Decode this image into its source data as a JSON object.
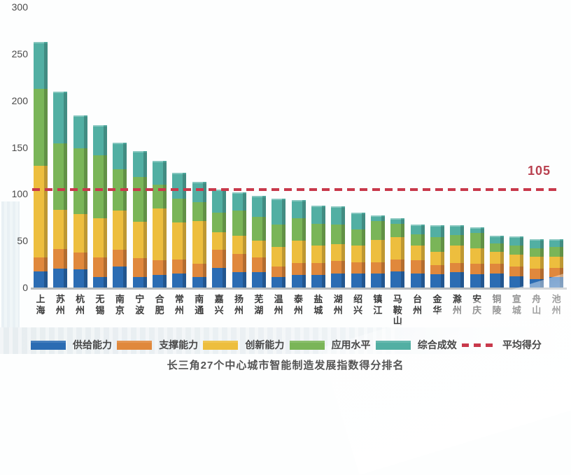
{
  "chart_data": {
    "type": "bar",
    "stacked": true,
    "title": "长三角27个中心城市智能制造发展指数得分排名",
    "categories": [
      "上海",
      "苏州",
      "杭州",
      "无锡",
      "南京",
      "宁波",
      "合肥",
      "常州",
      "南通",
      "嘉兴",
      "扬州",
      "芜湖",
      "温州",
      "泰州",
      "盐城",
      "湖州",
      "绍兴",
      "镇江",
      "马鞍山",
      "台州",
      "金华",
      "滁州",
      "安庆",
      "铜陵",
      "宣城",
      "舟山",
      "池州"
    ],
    "series": [
      {
        "key": "supply-capacity",
        "name": "供给能力",
        "color": "#2b6cb3",
        "values": [
          18,
          21,
          20,
          12,
          23,
          12,
          14,
          16,
          12,
          22,
          17,
          17,
          12,
          14,
          14,
          16,
          16,
          16,
          18,
          16,
          15,
          17,
          15,
          16,
          13,
          10,
          12
        ]
      },
      {
        "key": "support-capacity",
        "name": "支撑能力",
        "color": "#e0883c",
        "values": [
          15,
          21,
          18,
          21,
          18,
          20,
          16,
          15,
          14,
          19,
          20,
          16,
          11,
          13,
          13,
          13,
          12,
          12,
          13,
          14,
          10,
          10,
          11,
          10,
          10,
          11,
          10
        ]
      },
      {
        "key": "innovation-capacity",
        "name": "创新能力",
        "color": "#edbe3e",
        "values": [
          98,
          42,
          41,
          42,
          42,
          39,
          55,
          39,
          46,
          19,
          19,
          18,
          21,
          24,
          19,
          18,
          18,
          24,
          24,
          16,
          14,
          19,
          17,
          13,
          13,
          13,
          12
        ]
      },
      {
        "key": "application-level",
        "name": "应用水平",
        "color": "#7ab558",
        "values": [
          82,
          71,
          71,
          67,
          44,
          48,
          26,
          26,
          20,
          21,
          27,
          25,
          24,
          24,
          23,
          21,
          17,
          20,
          14,
          12,
          16,
          11,
          16,
          9,
          10,
          9,
          10
        ]
      },
      {
        "key": "comprehensive-results",
        "name": "综合成效",
        "color": "#52afa3",
        "values": [
          49,
          54,
          33,
          31,
          27,
          26,
          24,
          26,
          20,
          23,
          18,
          21,
          26,
          18,
          18,
          18,
          16,
          4,
          4,
          9,
          11,
          9,
          5,
          7,
          8,
          8,
          7
        ]
      }
    ],
    "totals": [
      262,
      209,
      183,
      173,
      154,
      145,
      135,
      122,
      112,
      104,
      101,
      97,
      94,
      93,
      87,
      86,
      79,
      76,
      73,
      67,
      66,
      66,
      64,
      55,
      54,
      51,
      51
    ],
    "average_line": {
      "value": 105,
      "label": "105",
      "name": "平均得分",
      "color": "#c8394b"
    },
    "y_ticks": [
      0,
      50,
      100,
      150,
      200,
      250,
      300
    ],
    "ylim": [
      0,
      300
    ],
    "grid": false,
    "legend_position": "bottom"
  }
}
